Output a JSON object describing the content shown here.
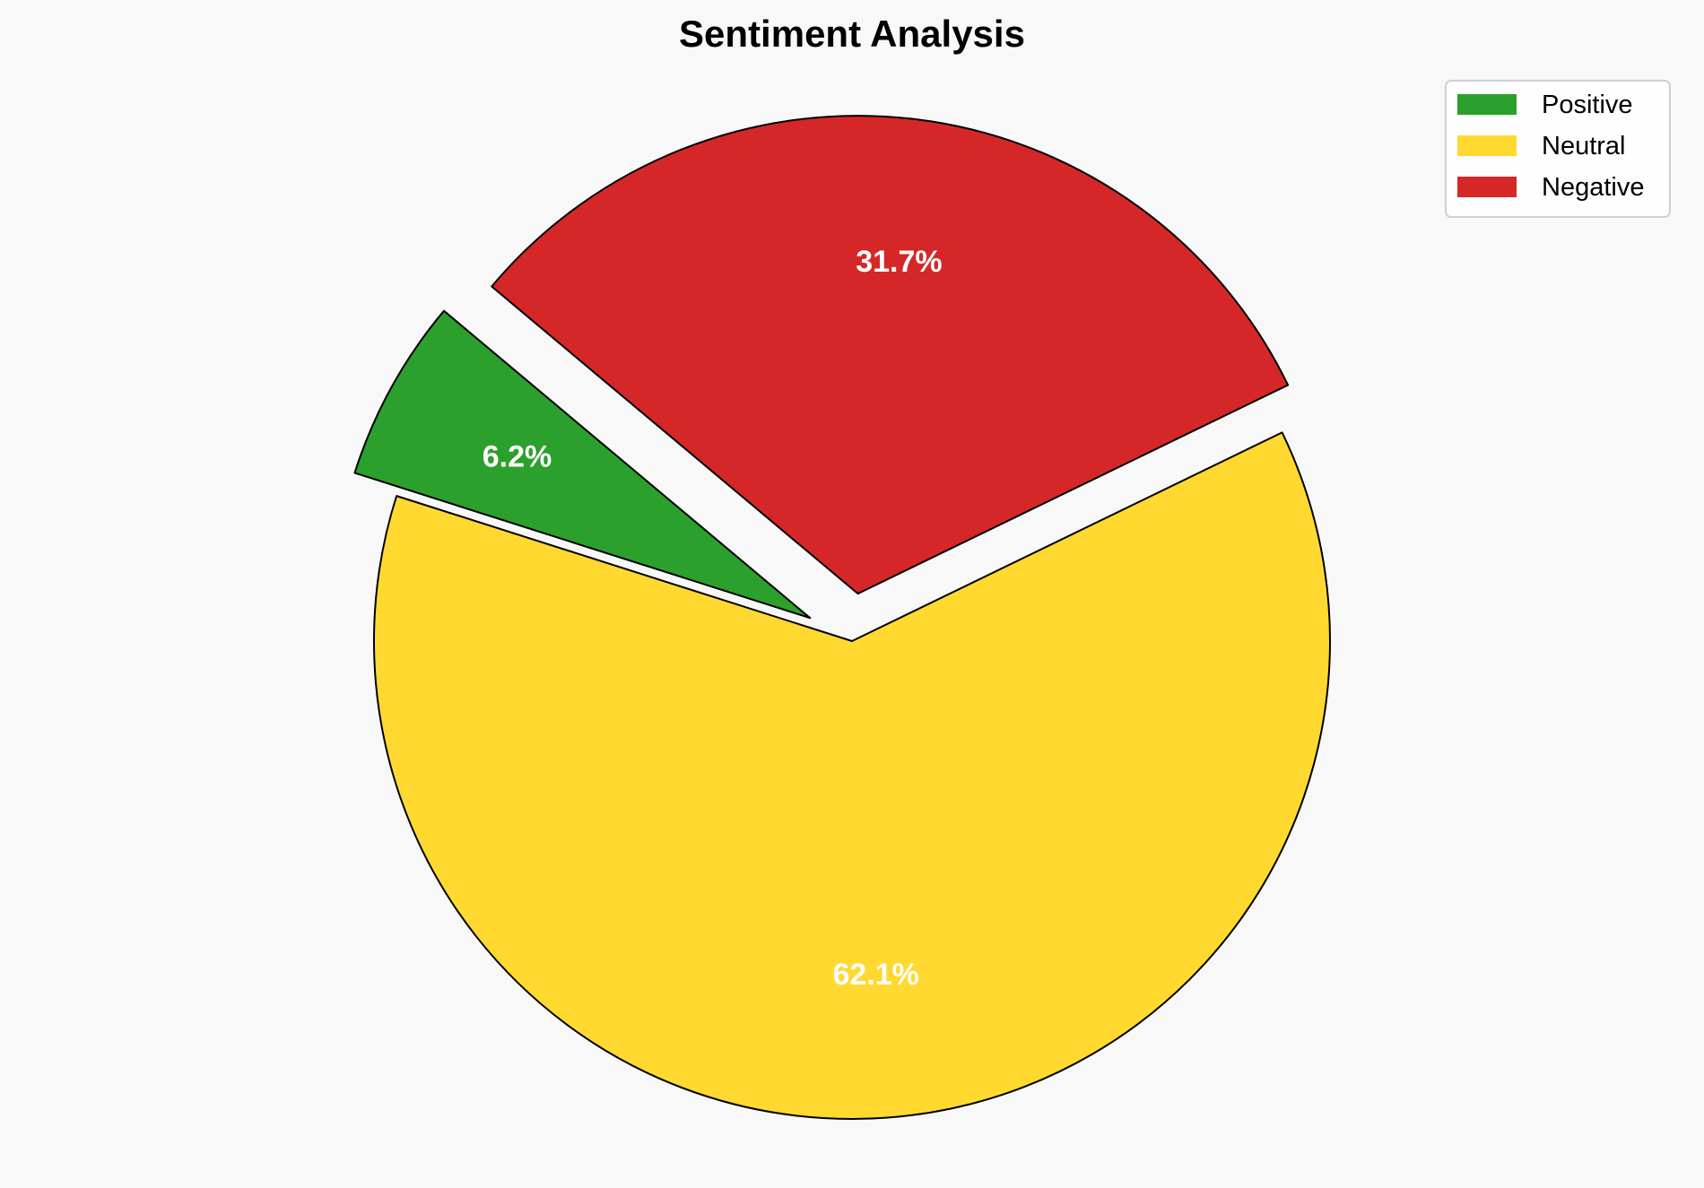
{
  "chart_data": {
    "type": "pie",
    "title": "Sentiment Analysis",
    "categories": [
      "Positive",
      "Neutral",
      "Negative"
    ],
    "values": [
      6.2,
      62.1,
      31.7
    ],
    "labels": [
      "6.2%",
      "62.1%",
      "31.7%"
    ],
    "colors": [
      "#2ca02c",
      "#ffd92f",
      "#d62728"
    ],
    "explode": [
      0.1,
      0,
      0.1
    ],
    "start_angle": 140,
    "direction": "counterclockwise",
    "edge_color": "#000000",
    "label_color": "#ffffff",
    "legend": {
      "entries": [
        "Positive",
        "Neutral",
        "Negative"
      ],
      "placement": "top-right"
    },
    "background": "#f8f8f8"
  }
}
